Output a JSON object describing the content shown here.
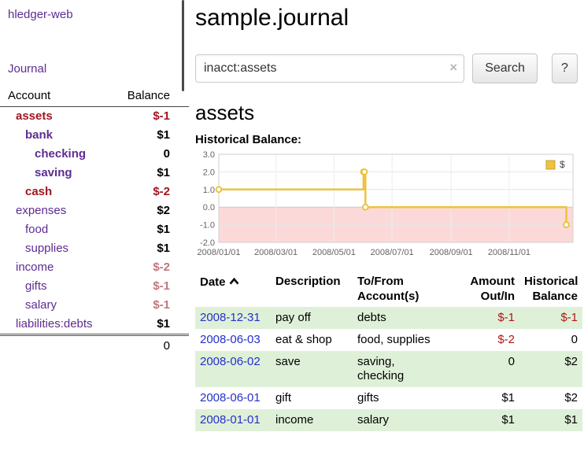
{
  "app": {
    "title": "hledger-web",
    "nav": {
      "journal": "Journal"
    }
  },
  "colors": {
    "purple": "#5c2d91",
    "blue": "#2430c9",
    "neg_dark": "#a01622",
    "neg_soft": "#c4757e",
    "row_green": "#dff0d8"
  },
  "sidebar": {
    "header": {
      "account": "Account",
      "balance": "Balance"
    },
    "accounts": [
      {
        "name": "assets",
        "balance": "$-1",
        "depth": 1,
        "bold": true
      },
      {
        "name": "bank",
        "balance": "$1",
        "depth": 2,
        "bold": true
      },
      {
        "name": "checking",
        "balance": "0",
        "depth": 3,
        "bold": true
      },
      {
        "name": "saving",
        "balance": "$1",
        "depth": 3,
        "bold": true
      },
      {
        "name": "cash",
        "balance": "$-2",
        "depth": 2,
        "bold": true
      },
      {
        "name": "expenses",
        "balance": "$2",
        "depth": 1,
        "bold": false
      },
      {
        "name": "food",
        "balance": "$1",
        "depth": 2,
        "bold": false
      },
      {
        "name": "supplies",
        "balance": "$1",
        "depth": 2,
        "bold": false
      },
      {
        "name": "income",
        "balance": "$-2",
        "depth": 1,
        "bold": false
      },
      {
        "name": "gifts",
        "balance": "$-1",
        "depth": 2,
        "bold": false
      },
      {
        "name": "salary",
        "balance": "$-1",
        "depth": 2,
        "bold": false
      },
      {
        "name": "liabilities:debts",
        "balance": "$1",
        "depth": 1,
        "bold": false
      }
    ],
    "total": "0"
  },
  "main": {
    "title": "sample.journal",
    "search": {
      "value": "inacct:assets",
      "clear_icon": "×",
      "button": "Search",
      "help": "?"
    },
    "account_heading": "assets",
    "chart_title": "Historical Balance:"
  },
  "chart_data": {
    "type": "line",
    "step": true,
    "title": "Historical Balance",
    "series": [
      {
        "name": "$",
        "color": "#edc240",
        "points": [
          [
            "2008-01-01",
            1
          ],
          [
            "2008-06-01",
            2
          ],
          [
            "2008-06-02",
            2
          ],
          [
            "2008-06-03",
            0
          ],
          [
            "2008-12-31",
            -1
          ]
        ]
      }
    ],
    "ylim": [
      -2,
      3
    ],
    "yticks": [
      3,
      2,
      1,
      0,
      -1,
      -2
    ],
    "xdomain": [
      "2008-01-01",
      "2009-01-07"
    ],
    "xticks": [
      {
        "date": "2008-01-01",
        "label": "2008/01/01"
      },
      {
        "date": "2008-03-01",
        "label": "2008/03/01"
      },
      {
        "date": "2008-05-01",
        "label": "2008/05/01"
      },
      {
        "date": "2008-07-01",
        "label": "2008/07/01"
      },
      {
        "date": "2008-09-01",
        "label": "2008/09/01"
      },
      {
        "date": "2008-11-01",
        "label": "2008/11/01"
      }
    ],
    "negative_region_color": "#fcd9d9",
    "grid": true,
    "legend_position": "top-right"
  },
  "register": {
    "headers": {
      "date": "Date",
      "description": "Description",
      "accounts": "To/From Account(s)",
      "amount": "Amount Out/In",
      "balance": "Historical Balance"
    },
    "sort_icon": "chevron-up",
    "rows": [
      {
        "date": "2008-12-31",
        "description": "pay off",
        "accounts": "debts",
        "amount": "$-1",
        "balance": "$-1"
      },
      {
        "date": "2008-06-03",
        "description": "eat & shop",
        "accounts": "food, supplies",
        "amount": "$-2",
        "balance": "0"
      },
      {
        "date": "2008-06-02",
        "description": "save",
        "accounts": "saving,\nchecking",
        "amount": "0",
        "balance": "$2"
      },
      {
        "date": "2008-06-01",
        "description": "gift",
        "accounts": "gifts",
        "amount": "$1",
        "balance": "$2"
      },
      {
        "date": "2008-01-01",
        "description": "income",
        "accounts": "salary",
        "amount": "$1",
        "balance": "$1"
      }
    ]
  }
}
